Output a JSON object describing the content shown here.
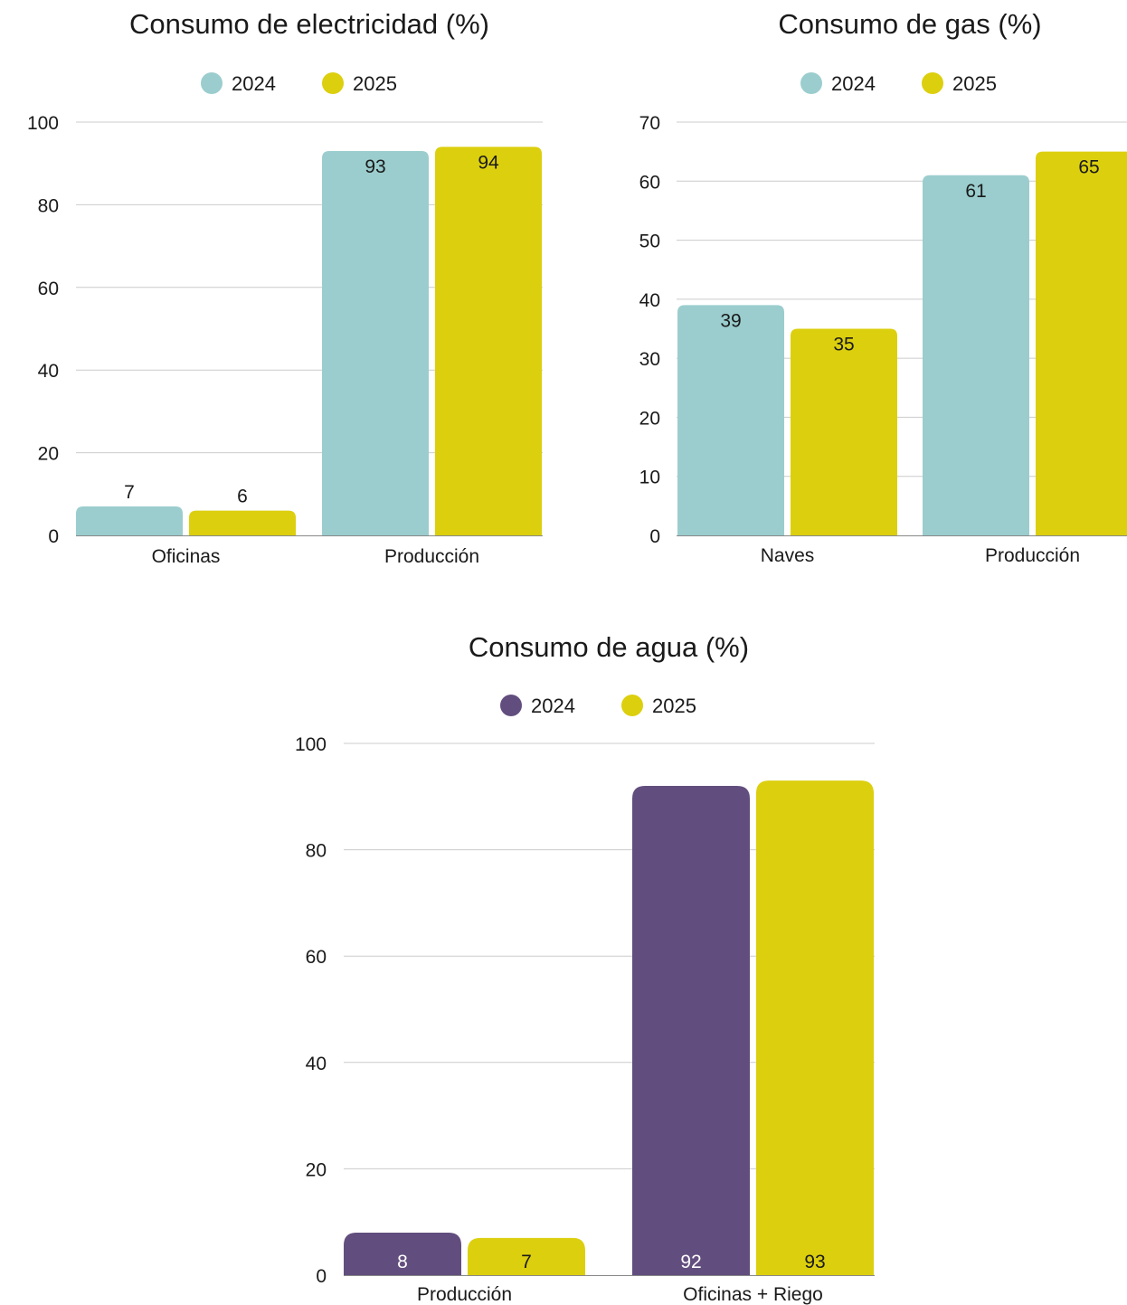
{
  "chart_data": [
    {
      "type": "bar",
      "title": "Consumo de electricidad (%)",
      "categories": [
        "Oficinas",
        "Producción"
      ],
      "series": [
        {
          "name": "2024",
          "values": [
            7,
            93
          ],
          "color": "#9bcdce"
        },
        {
          "name": "2025",
          "values": [
            6,
            94
          ],
          "color": "#dccf0e"
        }
      ],
      "yticks": [
        0,
        20,
        40,
        60,
        80,
        100
      ],
      "ylim": [
        0,
        100
      ],
      "grid": true,
      "legend": "top-center"
    },
    {
      "type": "bar",
      "title": "Consumo de gas (%)",
      "categories": [
        "Naves",
        "Producción"
      ],
      "series": [
        {
          "name": "2024",
          "values": [
            39,
            61
          ],
          "color": "#9bcdce"
        },
        {
          "name": "2025",
          "values": [
            35,
            65
          ],
          "color": "#dccf0e"
        }
      ],
      "yticks": [
        0,
        10,
        20,
        30,
        40,
        50,
        60,
        70
      ],
      "ylim": [
        0,
        70
      ],
      "grid": true,
      "legend": "top-center"
    },
    {
      "type": "bar",
      "title": "Consumo de agua (%)",
      "categories": [
        "Producción",
        "Oficinas + Riego"
      ],
      "series": [
        {
          "name": "2024",
          "values": [
            8,
            92
          ],
          "color": "#624e7e"
        },
        {
          "name": "2025",
          "values": [
            7,
            93
          ],
          "color": "#dccf0e"
        }
      ],
      "yticks": [
        0,
        20,
        40,
        60,
        80,
        100
      ],
      "ylim": [
        0,
        100
      ],
      "grid": true,
      "legend": "top-center"
    }
  ]
}
